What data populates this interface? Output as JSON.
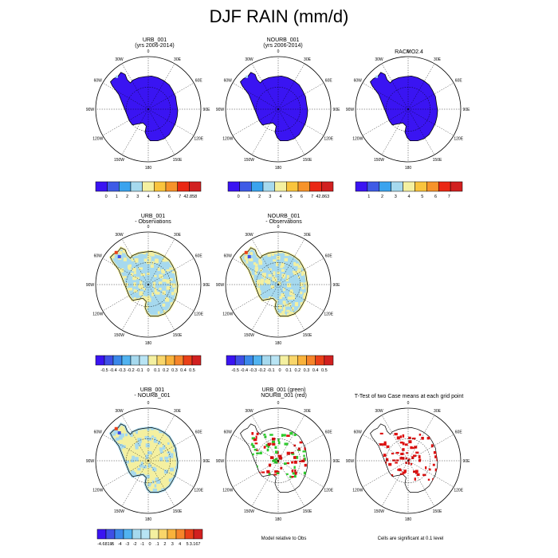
{
  "title": "DJF RAIN (mm/d)",
  "colors": {
    "rain": [
      "#3a14f2",
      "#3e5be6",
      "#3aa3ee",
      "#a6d9ee",
      "#f4f0a0",
      "#f9c43d",
      "#f6932a",
      "#ea2814",
      "#d12020"
    ],
    "diff": [
      "#3a14f2",
      "#3e4fe6",
      "#3a88ea",
      "#51b3f0",
      "#a6d9ee",
      "#b8e4f4",
      "#f4f0a0",
      "#f9d66a",
      "#f9b23b",
      "#f6852a",
      "#ea4018",
      "#d12020"
    ],
    "sig_green": "#2ecc2e",
    "sig_red": "#dd1111"
  },
  "panels": [
    {
      "title1": "URB_001",
      "title2": "(yrs 2006-2014)",
      "fill": "rain"
    },
    {
      "title1": "NOURB_001",
      "title2": "(yrs 2006-2014)",
      "fill": "rain"
    },
    {
      "title1": "RACMO2.4",
      "title2": "",
      "fill": "rain"
    },
    {
      "title1": "URB_001",
      "title2": "- Observations",
      "fill": "diff"
    },
    {
      "title1": "NOURB_001",
      "title2": "- Observations",
      "fill": "diff"
    },
    {
      "title1": "URB_001",
      "title2": "- NOURB_001",
      "fill": "diff2"
    },
    {
      "title1": "URB_001 (green)",
      "title2": "NOURB_001 (red)",
      "fill": "sig"
    },
    {
      "title1": "T-Test of two Case means at each grid point",
      "title2": "",
      "fill": "ttest"
    }
  ],
  "lon_labels": [
    "0",
    "30E",
    "60E",
    "90E",
    "120E",
    "150E",
    "180",
    "150W",
    "120W",
    "90W",
    "60W",
    "30W"
  ],
  "colorbars": [
    {
      "labels": [
        "0",
        "1",
        "2",
        "3",
        "4",
        "5",
        "6",
        "7",
        "42.858"
      ],
      "palette": "rain"
    },
    {
      "labels": [
        "0",
        "1",
        "2",
        "3",
        "4",
        "5",
        "6",
        "7",
        "42.863"
      ],
      "palette": "rain"
    },
    {
      "labels": [
        "1",
        "2",
        "3",
        "4",
        "5",
        "6",
        "7"
      ],
      "palette": "rain"
    },
    {
      "labels": [
        "-0.5",
        "-0.4",
        "-0.3",
        "-0.2",
        "-0.1",
        "0",
        "0.1",
        "0.2",
        "0.3",
        "0.4",
        "0.5"
      ],
      "palette": "diff"
    },
    {
      "labels": [
        "-0.5",
        "-0.4",
        "-0.3",
        "-0.2",
        "-0.1",
        "0",
        "0.1",
        "0.2",
        "0.3",
        "0.4",
        "0.5"
      ],
      "palette": "diff"
    },
    {
      "labels": [
        "-4.6819",
        "-5",
        "-4",
        "-3",
        "-2",
        "-1",
        "0",
        ".1",
        "2",
        "3",
        "4",
        "5",
        "3.167"
      ],
      "palette": "diff"
    }
  ],
  "notes": {
    "model": "Model relative to Obs",
    "cells": "Cells are significant at 0.1 level"
  },
  "chart_data": [
    {
      "type": "heatmap",
      "title": "URB_001",
      "subtitle": "(yrs 2006-2014)",
      "variable": "DJF rain",
      "units": "mm/d",
      "colorbar_levels": [
        0,
        1,
        2,
        3,
        4,
        5,
        6,
        7
      ],
      "colorbar_max": 42.858,
      "dominant_range": [
        0,
        1
      ]
    },
    {
      "type": "heatmap",
      "title": "NOURB_001",
      "subtitle": "(yrs 2006-2014)",
      "variable": "DJF rain",
      "units": "mm/d",
      "colorbar_levels": [
        0,
        1,
        2,
        3,
        4,
        5,
        6,
        7
      ],
      "colorbar_max": 42.863,
      "dominant_range": [
        0,
        1
      ]
    },
    {
      "type": "heatmap",
      "title": "RACMO2.4",
      "variable": "DJF rain",
      "units": "mm/d",
      "colorbar_levels": [
        1,
        2,
        3,
        4,
        5,
        6,
        7
      ],
      "dominant_range": [
        0,
        1
      ]
    },
    {
      "type": "heatmap",
      "title": "URB_001",
      "subtitle": "- Observations",
      "colorbar_levels": [
        -0.5,
        -0.4,
        -0.3,
        -0.2,
        -0.1,
        0,
        0.1,
        0.2,
        0.3,
        0.4,
        0.5
      ],
      "dominant_range": [
        -0.1,
        0.1
      ]
    },
    {
      "type": "heatmap",
      "title": "NOURB_001",
      "subtitle": "- Observations",
      "colorbar_levels": [
        -0.5,
        -0.4,
        -0.3,
        -0.2,
        -0.1,
        0,
        0.1,
        0.2,
        0.3,
        0.4,
        0.5
      ],
      "dominant_range": [
        -0.1,
        0.1
      ]
    },
    {
      "type": "heatmap",
      "title": "URB_001",
      "subtitle": "- NOURB_001",
      "colorbar_labels": [
        "-4.6819",
        "-5",
        "-4",
        "-3",
        "-2",
        "-1",
        "0",
        ".1",
        "2",
        "3",
        "4",
        "5",
        "3.167"
      ],
      "dominant_range": [
        -1,
        0.1
      ]
    },
    {
      "type": "heatmap",
      "title": "URB_001 (green)",
      "subtitle": "NOURB_001 (red)",
      "note": "Model relative to Obs"
    },
    {
      "type": "heatmap",
      "title": "T-Test of two Case means at each grid point",
      "note": "Cells are significant at 0.1 level"
    }
  ]
}
